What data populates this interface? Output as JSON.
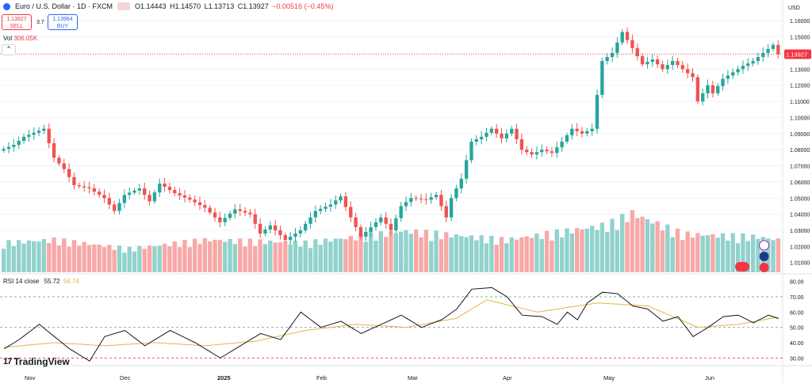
{
  "header": {
    "symbol": "Euro / U.S. Dollar · 1D · FXCM",
    "open": "O1.14443",
    "high": "H1.14570",
    "low": "L1.13713",
    "close": "C1.13927",
    "change": "−0.00516 (−0.45%)"
  },
  "trade": {
    "sell_price": "1.13927",
    "sell_label": "SELL",
    "spread": "3.7",
    "buy_price": "1.13964",
    "buy_label": "BUY"
  },
  "volume": {
    "label": "Vol",
    "value": "306.05K"
  },
  "rsi": {
    "label": "RSI 14 close",
    "value": "55.72",
    "ma_value": "56.74"
  },
  "brand": {
    "name": "TradingView",
    "mark": "17"
  },
  "price_axis": {
    "currency": "USD",
    "ticks": [
      "1.16000",
      "1.15000",
      "1.14000",
      "1.13000",
      "1.12000",
      "1.11000",
      "1.10000",
      "1.09000",
      "1.08000",
      "1.07000",
      "1.06000",
      "1.05000",
      "1.04000",
      "1.03000",
      "1.02000",
      "1.01000"
    ],
    "current_price": "1.13927"
  },
  "rsi_axis": {
    "ticks": [
      "80.00",
      "70.00",
      "60.00",
      "50.00",
      "40.00",
      "30.00"
    ]
  },
  "time_axis": {
    "labels": [
      "Nov",
      "Dec",
      "2025",
      "Feb",
      "Mar",
      "Apr",
      "May",
      "Jun"
    ]
  },
  "colors": {
    "up": "#26a69a",
    "down": "#ef5350",
    "vol_up": "#92d2cc",
    "vol_down": "#f7a9a7",
    "rsi": "#131722",
    "rsi_ma": "#e0b743",
    "price_tag": "#f23645"
  },
  "chart_data": {
    "type": "candlestick",
    "title": "Euro / U.S. Dollar · 1D · FXCM",
    "ylabel": "USD",
    "ylim": [
      1.003,
      1.166
    ],
    "ohlc_waypoints": [
      [
        1.0805,
        0
      ],
      [
        1.083,
        2
      ],
      [
        1.088,
        4
      ],
      [
        1.093,
        8
      ],
      [
        1.075,
        10
      ],
      [
        1.068,
        12
      ],
      [
        1.058,
        14
      ],
      [
        1.056,
        17
      ],
      [
        1.05,
        20
      ],
      [
        1.042,
        22
      ],
      [
        1.052,
        24
      ],
      [
        1.056,
        27
      ],
      [
        1.048,
        29
      ],
      [
        1.059,
        31
      ],
      [
        1.053,
        34
      ],
      [
        1.049,
        37
      ],
      [
        1.044,
        40
      ],
      [
        1.035,
        43
      ],
      [
        1.043,
        46
      ],
      [
        1.04,
        49
      ],
      [
        1.028,
        51
      ],
      [
        1.033,
        53
      ],
      [
        1.024,
        56
      ],
      [
        1.03,
        59
      ],
      [
        1.042,
        62
      ],
      [
        1.046,
        65
      ],
      [
        1.051,
        67
      ],
      [
        1.038,
        69
      ],
      [
        1.026,
        71
      ],
      [
        1.032,
        73
      ],
      [
        1.038,
        75
      ],
      [
        1.03,
        77
      ],
      [
        1.045,
        79
      ],
      [
        1.05,
        81
      ],
      [
        1.049,
        84
      ],
      [
        1.052,
        86
      ],
      [
        1.038,
        88
      ],
      [
        1.05,
        89
      ],
      [
        1.062,
        91
      ],
      [
        1.085,
        93
      ],
      [
        1.088,
        95
      ],
      [
        1.093,
        97
      ],
      [
        1.087,
        99
      ],
      [
        1.093,
        101
      ],
      [
        1.08,
        103
      ],
      [
        1.077,
        105
      ],
      [
        1.08,
        107
      ],
      [
        1.078,
        109
      ],
      [
        1.085,
        111
      ],
      [
        1.093,
        113
      ],
      [
        1.09,
        115
      ],
      [
        1.093,
        117
      ],
      [
        1.135,
        119
      ],
      [
        1.14,
        121
      ],
      [
        1.153,
        123
      ],
      [
        1.143,
        125
      ],
      [
        1.133,
        127
      ],
      [
        1.136,
        129
      ],
      [
        1.13,
        131
      ],
      [
        1.135,
        133
      ],
      [
        1.13,
        135
      ],
      [
        1.125,
        137
      ],
      [
        1.11,
        138
      ],
      [
        1.12,
        140
      ],
      [
        1.115,
        141
      ],
      [
        1.124,
        143
      ],
      [
        1.128,
        145
      ],
      [
        1.132,
        147
      ],
      [
        1.135,
        149
      ],
      [
        1.14,
        151
      ],
      [
        1.145,
        153
      ],
      [
        1.1392,
        154
      ]
    ],
    "volume_waypoints": [
      [
        0.5,
        0
      ],
      [
        0.55,
        10
      ],
      [
        0.4,
        25
      ],
      [
        0.55,
        40
      ],
      [
        0.5,
        60
      ],
      [
        0.7,
        80
      ],
      [
        0.55,
        100
      ],
      [
        0.8,
        120
      ],
      [
        1.0,
        125
      ],
      [
        0.65,
        135
      ],
      [
        0.6,
        150
      ],
      [
        0.55,
        154
      ]
    ],
    "rsi_ylim": [
      25,
      85
    ],
    "rsi_waypoints": [
      [
        36,
        0
      ],
      [
        42,
        3
      ],
      [
        52,
        7
      ],
      [
        44,
        10
      ],
      [
        36,
        13
      ],
      [
        28,
        17
      ],
      [
        44,
        20
      ],
      [
        48,
        24
      ],
      [
        38,
        28
      ],
      [
        48,
        33
      ],
      [
        40,
        38
      ],
      [
        30,
        43
      ],
      [
        38,
        47
      ],
      [
        46,
        51
      ],
      [
        42,
        55
      ],
      [
        60,
        59
      ],
      [
        50,
        63
      ],
      [
        54,
        67
      ],
      [
        46,
        71
      ],
      [
        52,
        75
      ],
      [
        58,
        79
      ],
      [
        50,
        83
      ],
      [
        55,
        87
      ],
      [
        62,
        90
      ],
      [
        75,
        93
      ],
      [
        76,
        97
      ],
      [
        70,
        100
      ],
      [
        58,
        103
      ],
      [
        57,
        107
      ],
      [
        52,
        110
      ],
      [
        60,
        112
      ],
      [
        55,
        114
      ],
      [
        66,
        116
      ],
      [
        73,
        119
      ],
      [
        72,
        122
      ],
      [
        64,
        125
      ],
      [
        62,
        128
      ],
      [
        54,
        131
      ],
      [
        57,
        134
      ],
      [
        44,
        137
      ],
      [
        50,
        140
      ],
      [
        57,
        143
      ],
      [
        58,
        146
      ],
      [
        53,
        149
      ],
      [
        58,
        152
      ],
      [
        55.72,
        154
      ]
    ],
    "rsi_ma_waypoints": [
      [
        37,
        0
      ],
      [
        40,
        10
      ],
      [
        38,
        20
      ],
      [
        40,
        30
      ],
      [
        38,
        40
      ],
      [
        41,
        50
      ],
      [
        48,
        60
      ],
      [
        52,
        70
      ],
      [
        50,
        80
      ],
      [
        56,
        90
      ],
      [
        68,
        96
      ],
      [
        60,
        106
      ],
      [
        66,
        118
      ],
      [
        64,
        128
      ],
      [
        50,
        138
      ],
      [
        52,
        146
      ],
      [
        56.74,
        154
      ]
    ]
  }
}
